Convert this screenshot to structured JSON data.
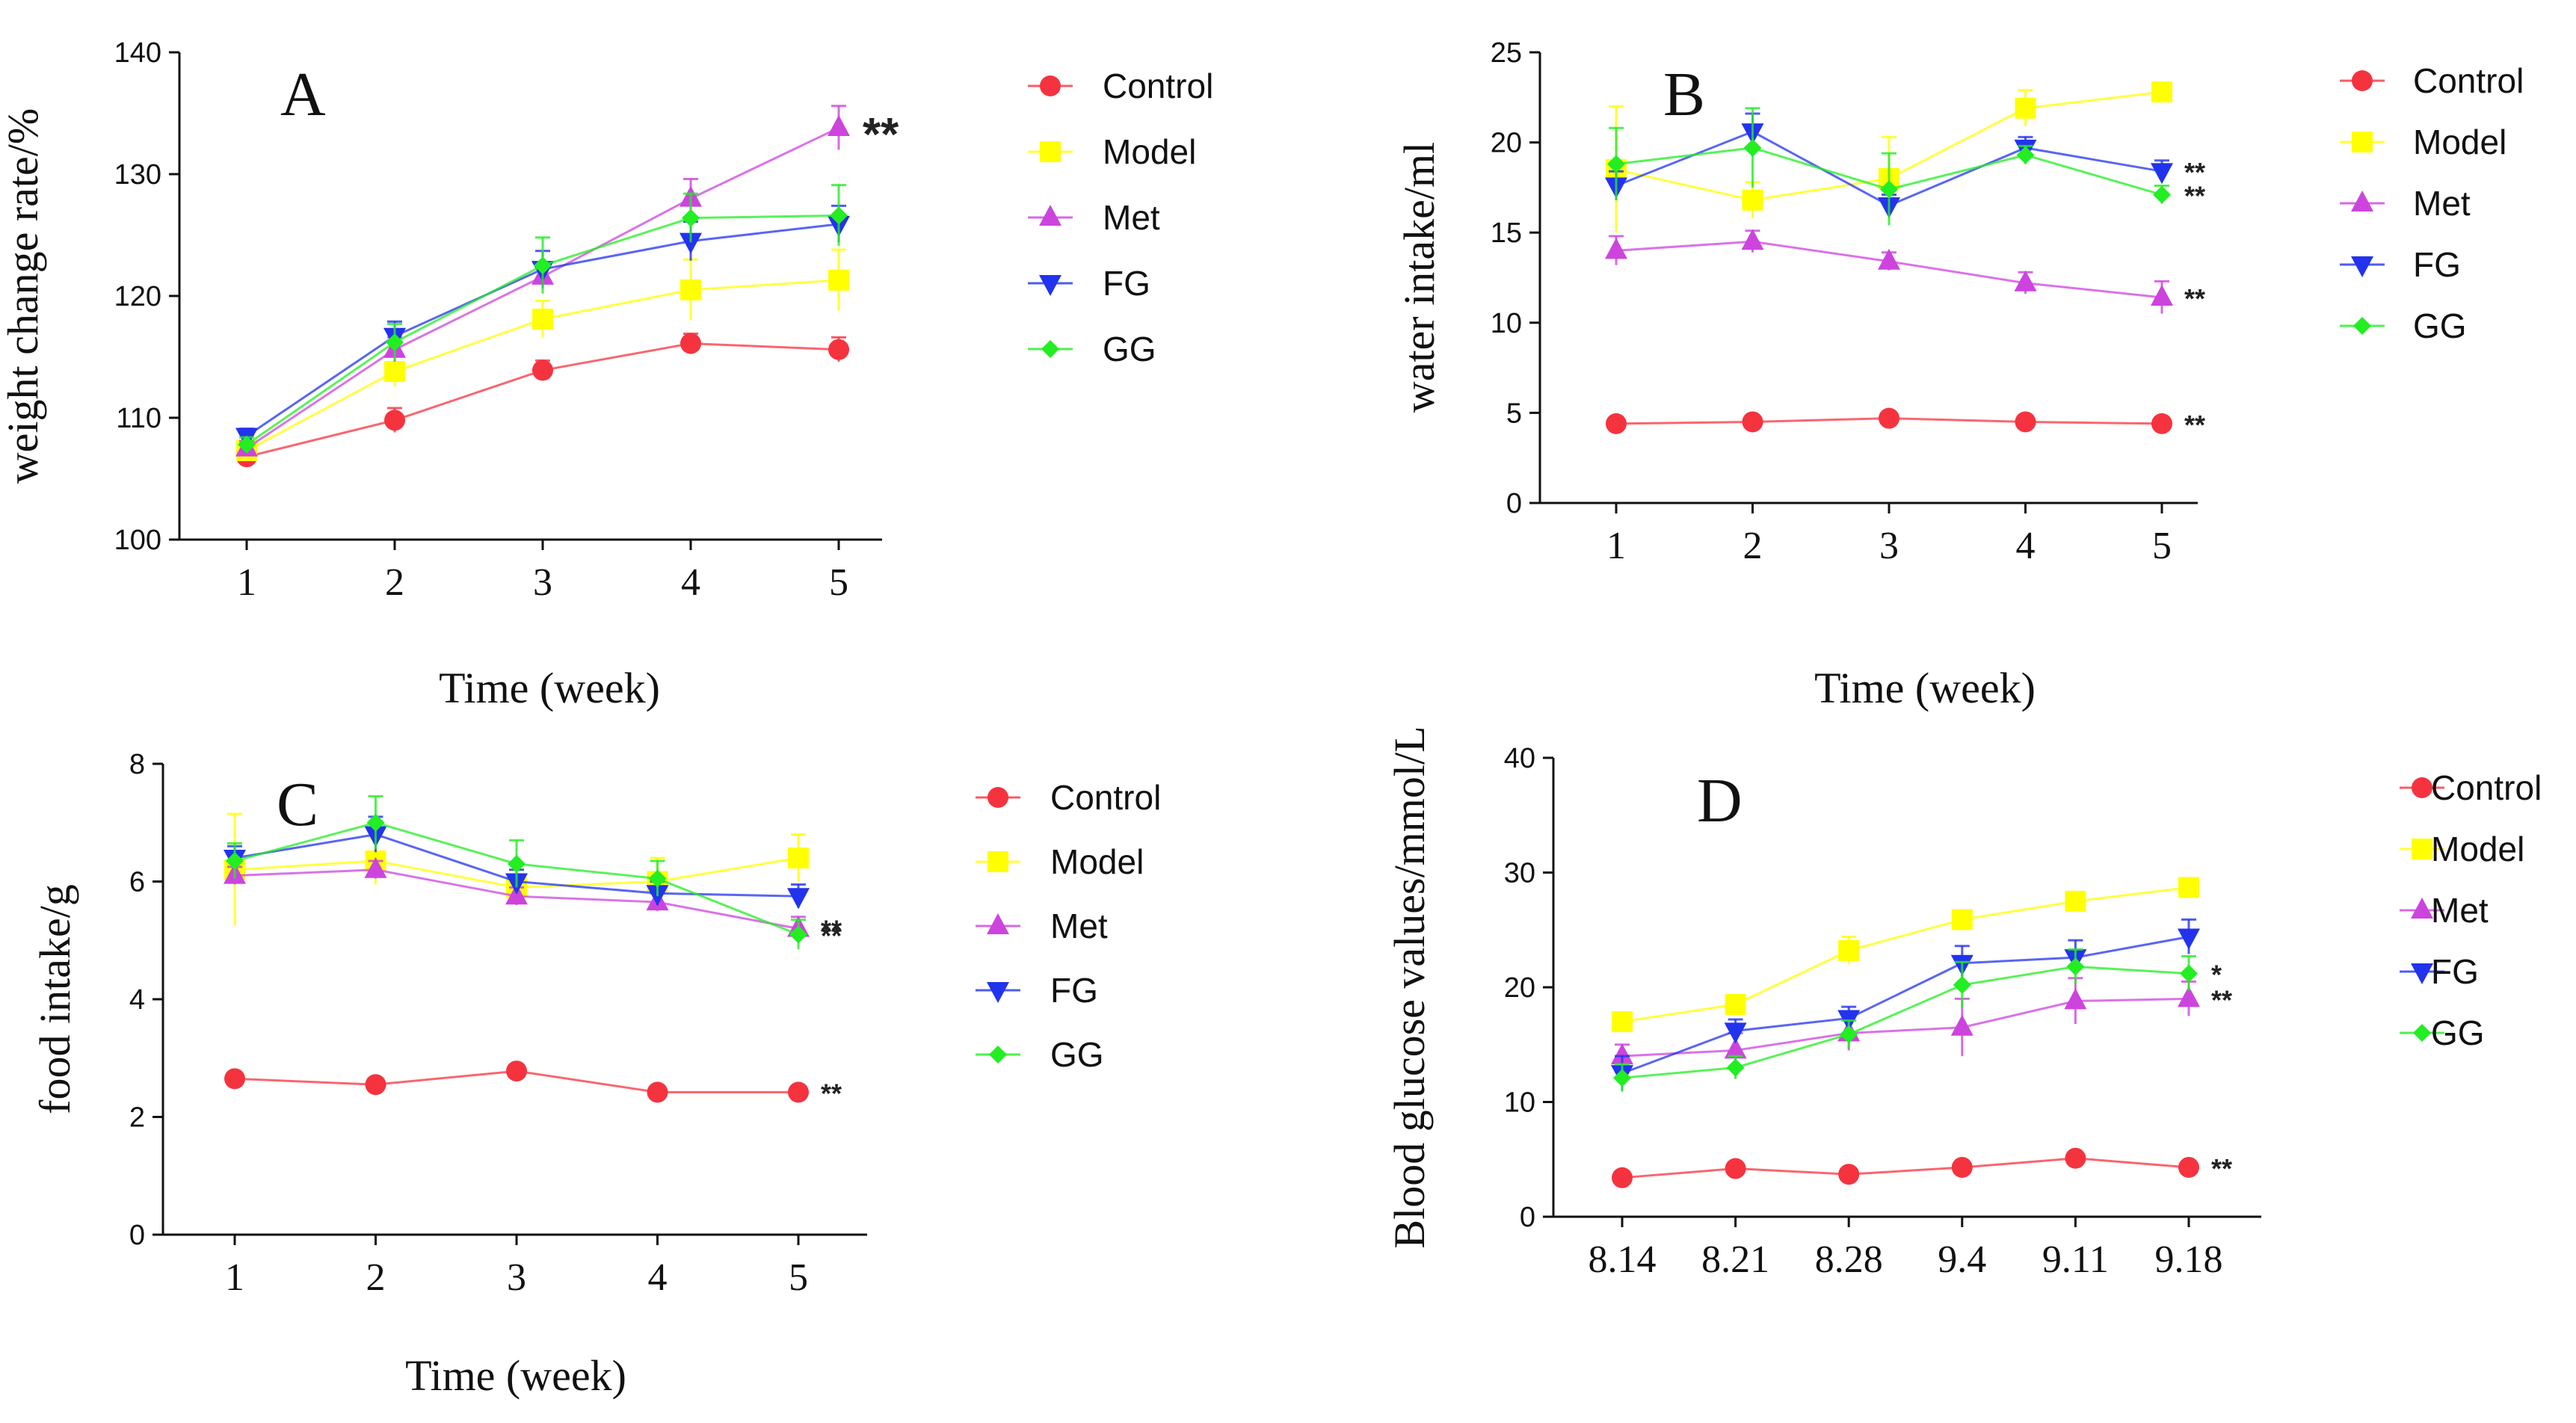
{
  "colors": {
    "Control": "#f5333f",
    "Model": "#ffff00",
    "Met": "#cc44dd",
    "FG": "#2233ee",
    "GG": "#22ee22",
    "axis": "#111111"
  },
  "chart_data": [
    {
      "type": "line",
      "panel": "A",
      "title": "A",
      "xlabel": "Time (week)",
      "ylabel": "weight change rate/%",
      "categories": [
        "1",
        "2",
        "3",
        "4",
        "5"
      ],
      "ylim": [
        100,
        140
      ],
      "yticks": [
        "100",
        "110",
        "120",
        "130",
        "140"
      ],
      "series": [
        {
          "name": "Control",
          "marker": "circle",
          "values": [
            106.8,
            109.8,
            113.9,
            116.1,
            115.6
          ],
          "errors": [
            0.8,
            1.0,
            0.8,
            0.8,
            1.0
          ]
        },
        {
          "name": "Model",
          "marker": "square",
          "values": [
            107.3,
            113.8,
            118.1,
            120.5,
            121.3
          ],
          "errors": [
            0.8,
            1.2,
            1.5,
            2.5,
            2.5
          ]
        },
        {
          "name": "Met",
          "marker": "triangle-up",
          "values": [
            107.5,
            115.6,
            121.6,
            128.0,
            133.8
          ],
          "errors": [
            0.6,
            1.0,
            1.0,
            1.6,
            1.8
          ]
        },
        {
          "name": "FG",
          "marker": "triangle-down",
          "values": [
            108.5,
            116.7,
            122.2,
            124.5,
            125.9
          ],
          "errors": [
            0.6,
            1.2,
            1.5,
            1.6,
            1.5
          ]
        },
        {
          "name": "GG",
          "marker": "diamond",
          "values": [
            107.8,
            116.2,
            122.5,
            126.4,
            126.6
          ],
          "errors": [
            0.6,
            1.5,
            2.3,
            2.0,
            2.5
          ]
        }
      ],
      "annotations": [
        {
          "text": "**",
          "series": "Met",
          "index": 4,
          "size": "large"
        }
      ]
    },
    {
      "type": "line",
      "panel": "B",
      "title": "B",
      "xlabel": "Time (week)",
      "ylabel": "water intake/ml",
      "categories": [
        "1",
        "2",
        "3",
        "4",
        "5"
      ],
      "ylim": [
        0,
        25
      ],
      "yticks": [
        "0",
        "5",
        "10",
        "15",
        "20",
        "25"
      ],
      "series": [
        {
          "name": "Control",
          "marker": "circle",
          "values": [
            4.4,
            4.5,
            4.7,
            4.5,
            4.4
          ],
          "errors": [
            0.2,
            0.2,
            0.2,
            0.2,
            0.2
          ]
        },
        {
          "name": "Model",
          "marker": "square",
          "values": [
            18.5,
            16.8,
            18.0,
            21.9,
            22.8
          ],
          "errors": [
            3.5,
            1.0,
            2.3,
            1.0,
            0.5
          ]
        },
        {
          "name": "Met",
          "marker": "triangle-up",
          "values": [
            14.0,
            14.5,
            13.4,
            12.2,
            11.4
          ],
          "errors": [
            0.8,
            0.6,
            0.5,
            0.6,
            0.9
          ]
        },
        {
          "name": "FG",
          "marker": "triangle-down",
          "values": [
            17.6,
            20.6,
            16.5,
            19.7,
            18.4
          ],
          "errors": [
            0.8,
            1.0,
            0.6,
            0.6,
            0.6
          ]
        },
        {
          "name": "GG",
          "marker": "diamond",
          "values": [
            18.8,
            19.7,
            17.4,
            19.3,
            17.1
          ],
          "errors": [
            2.0,
            2.2,
            2.0,
            0.5,
            0.5
          ]
        }
      ],
      "annotations": [
        {
          "text": "**",
          "series": "FG",
          "index": 4,
          "size": "small"
        },
        {
          "text": "**",
          "series": "GG",
          "index": 4,
          "size": "small"
        },
        {
          "text": "**",
          "series": "Met",
          "index": 4,
          "size": "small"
        },
        {
          "text": "**",
          "series": "Control",
          "index": 4,
          "size": "small"
        }
      ]
    },
    {
      "type": "line",
      "panel": "C",
      "title": "C",
      "xlabel": "Time (week)",
      "ylabel": "food intake/g",
      "categories": [
        "1",
        "2",
        "3",
        "4",
        "5"
      ],
      "ylim": [
        0,
        8
      ],
      "yticks": [
        "0",
        "2",
        "4",
        "6",
        "8"
      ],
      "series": [
        {
          "name": "Control",
          "marker": "circle",
          "values": [
            2.65,
            2.55,
            2.78,
            2.42,
            2.42
          ],
          "errors": [
            0.08,
            0.08,
            0.08,
            0.08,
            0.08
          ]
        },
        {
          "name": "Model",
          "marker": "square",
          "values": [
            6.2,
            6.35,
            5.9,
            6.0,
            6.4
          ],
          "errors": [
            0.95,
            0.4,
            0.3,
            0.4,
            0.4
          ]
        },
        {
          "name": "Met",
          "marker": "triangle-up",
          "values": [
            6.1,
            6.2,
            5.75,
            5.65,
            5.2
          ],
          "errors": [
            0.15,
            0.15,
            0.15,
            0.15,
            0.2
          ]
        },
        {
          "name": "FG",
          "marker": "triangle-down",
          "values": [
            6.4,
            6.8,
            6.0,
            5.8,
            5.75
          ],
          "errors": [
            0.2,
            0.3,
            0.2,
            0.2,
            0.2
          ]
        },
        {
          "name": "GG",
          "marker": "diamond",
          "values": [
            6.35,
            7.0,
            6.3,
            6.05,
            5.1
          ],
          "errors": [
            0.3,
            0.45,
            0.4,
            0.3,
            0.25
          ]
        }
      ],
      "annotations": [
        {
          "text": "**",
          "series": "Met",
          "index": 4,
          "size": "small"
        },
        {
          "text": "**",
          "series": "GG",
          "index": 4,
          "size": "small"
        },
        {
          "text": "**",
          "series": "Control",
          "index": 4,
          "size": "small"
        }
      ]
    },
    {
      "type": "line",
      "panel": "D",
      "title": "D",
      "xlabel": "",
      "ylabel": "Blood glucose values/mmol/L",
      "categories": [
        "8.14",
        "8.21",
        "8.28",
        "9.4",
        "9.11",
        "9.18"
      ],
      "ylim": [
        0,
        40
      ],
      "yticks": [
        "0",
        "10",
        "20",
        "30",
        "40"
      ],
      "series": [
        {
          "name": "Control",
          "marker": "circle",
          "values": [
            3.4,
            4.2,
            3.7,
            4.3,
            5.1,
            4.3
          ],
          "errors": [
            0.3,
            0.3,
            0.3,
            0.3,
            0.3,
            0.3
          ]
        },
        {
          "name": "Model",
          "marker": "square",
          "values": [
            17.0,
            18.5,
            23.2,
            25.9,
            27.5,
            28.7
          ],
          "errors": [
            0.8,
            0.8,
            1.2,
            0.8,
            0.8,
            0.8
          ]
        },
        {
          "name": "Met",
          "marker": "triangle-up",
          "values": [
            14.0,
            14.5,
            16.0,
            16.5,
            18.8,
            19.0
          ],
          "errors": [
            1.0,
            1.5,
            1.5,
            2.5,
            2.0,
            1.5
          ]
        },
        {
          "name": "FG",
          "marker": "triangle-down",
          "values": [
            12.5,
            16.2,
            17.3,
            22.1,
            22.6,
            24.4
          ],
          "errors": [
            1.5,
            1.0,
            1.0,
            1.5,
            1.5,
            1.5
          ]
        },
        {
          "name": "GG",
          "marker": "diamond",
          "values": [
            12.1,
            13.0,
            15.9,
            20.2,
            21.8,
            21.2
          ],
          "errors": [
            1.2,
            1.0,
            1.2,
            2.0,
            1.5,
            1.5
          ]
        }
      ],
      "annotations": [
        {
          "text": "*",
          "series": "GG",
          "index": 5,
          "size": "small"
        },
        {
          "text": "**",
          "series": "Met",
          "index": 5,
          "size": "small"
        },
        {
          "text": "**",
          "series": "Control",
          "index": 5,
          "size": "small"
        }
      ]
    }
  ]
}
